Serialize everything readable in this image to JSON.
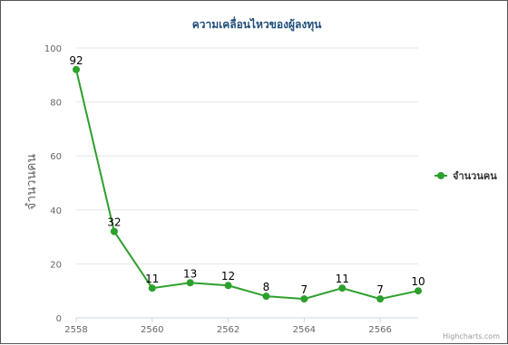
{
  "chart_data": {
    "type": "line",
    "title": "ความเคลื่อนไหวของผู้ลงทุน",
    "ylabel": "จำนวนคน",
    "xlabel": "",
    "x": [
      2558,
      2559,
      2560,
      2561,
      2562,
      2563,
      2564,
      2565,
      2566,
      2567
    ],
    "x_ticks": [
      2558,
      2560,
      2562,
      2564,
      2566
    ],
    "xlim": [
      2558,
      2567
    ],
    "y_ticks": [
      0,
      20,
      40,
      60,
      80,
      100
    ],
    "ylim": [
      0,
      100
    ],
    "grid": true,
    "legend_position": "right",
    "series": [
      {
        "name": "จำนวนคน",
        "color": "#2ca02c",
        "values": [
          92,
          32,
          11,
          13,
          12,
          8,
          7,
          11,
          7,
          10
        ]
      }
    ],
    "credits": "Highcharts.com"
  }
}
